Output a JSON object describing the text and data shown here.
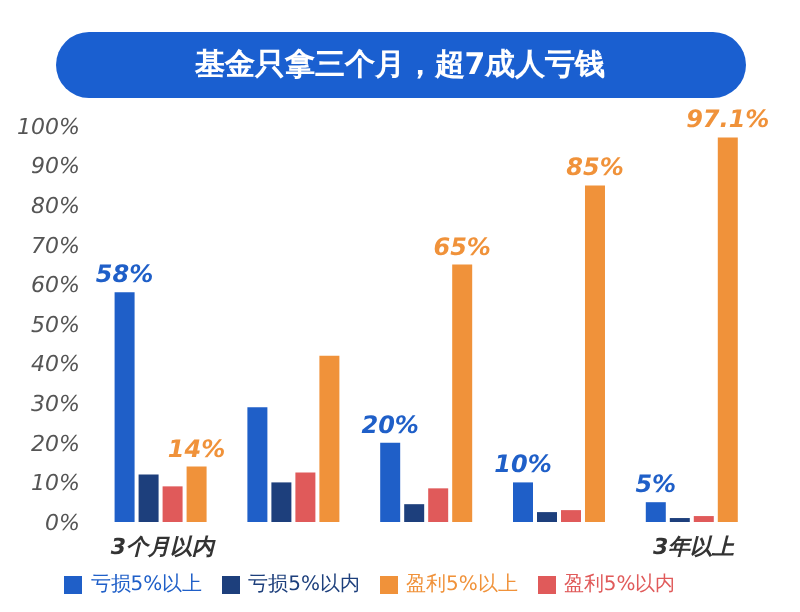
{
  "chart_data": {
    "type": "bar",
    "title": "基金只拿三个月，超7成人亏钱",
    "categories": [
      "3个月以内",
      null,
      null,
      null,
      "3年以上"
    ],
    "series": [
      {
        "name": "亏损5%以上",
        "color": "#1f5fc8",
        "values": [
          58,
          29,
          20,
          10,
          5
        ],
        "value_labels": [
          "58%",
          null,
          "20%",
          "10%",
          "5%"
        ]
      },
      {
        "name": "亏损5%以内",
        "color": "#1d3f7c",
        "values": [
          12,
          10,
          4.5,
          2.5,
          1
        ]
      },
      {
        "name": "盈利5%以内",
        "color": "#e05a5a",
        "values": [
          9,
          12.5,
          8.5,
          3,
          1.5
        ]
      },
      {
        "name": "盈利5%以上",
        "color": "#f0923a",
        "values": [
          14,
          42,
          65,
          85,
          97.1
        ],
        "value_labels": [
          "14%",
          null,
          "65%",
          "85%",
          "97.1%"
        ]
      }
    ],
    "ylim": [
      0,
      100
    ],
    "yticks": [
      {
        "value": 0,
        "label": "0%"
      },
      {
        "value": 10,
        "label": "10%"
      },
      {
        "value": 20,
        "label": "20%"
      },
      {
        "value": 30,
        "label": "30%"
      },
      {
        "value": 40,
        "label": "40%"
      },
      {
        "value": 50,
        "label": "50%"
      },
      {
        "value": 60,
        "label": "60%"
      },
      {
        "value": 70,
        "label": "70%"
      },
      {
        "value": 80,
        "label": "80%"
      },
      {
        "value": 90,
        "label": "90%"
      },
      {
        "value": 100,
        "label": "100%"
      }
    ],
    "grid": false,
    "legend": "bottom"
  }
}
